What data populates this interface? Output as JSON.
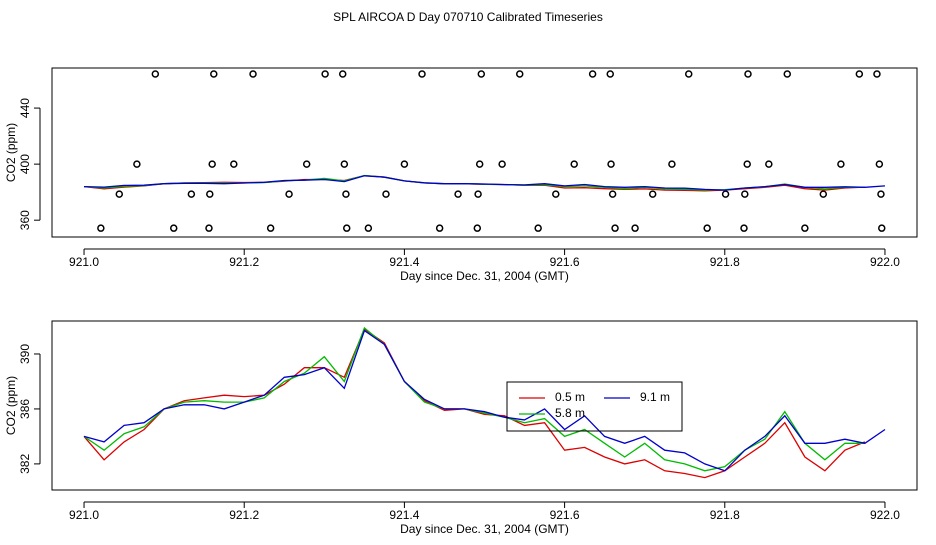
{
  "title": "SPL AIRCOA D  Day 070710  Calibrated Timeseries",
  "chart_data": [
    {
      "type": "line",
      "xlabel": "Day since Dec. 31, 2004 (GMT)",
      "ylabel": "CO2 (ppm)",
      "xlim": [
        920.96,
        922.04
      ],
      "ylim": [
        348,
        468.6
      ],
      "xticks": [
        {
          "value": 921,
          "label": "921.0"
        },
        921.2,
        921.4,
        921.6,
        921.8,
        {
          "value": 922,
          "label": "922.0"
        }
      ],
      "yticks": [
        360,
        400,
        440
      ],
      "x": [
        921.0,
        921.025,
        921.05,
        921.075,
        921.1,
        921.125,
        921.15,
        921.175,
        921.2,
        921.225,
        921.25,
        921.275,
        921.3,
        921.325,
        921.35,
        921.375,
        921.4,
        921.425,
        921.45,
        921.475,
        921.5,
        921.525,
        921.55,
        921.575,
        921.6,
        921.625,
        921.65,
        921.675,
        921.7,
        921.725,
        921.75,
        921.775,
        921.8,
        921.825,
        921.85,
        921.875,
        921.9,
        921.925,
        921.95,
        921.975,
        922.0
      ],
      "series": [
        {
          "color": "#dd0000",
          "values": [
            384,
            382.3,
            383.6,
            384.5,
            386.0,
            386.6,
            386.8,
            387.0,
            386.9,
            387.0,
            387.8,
            389.0,
            389.0,
            388.3,
            391.8,
            390.8,
            388.0,
            386.6,
            385.9,
            386.0,
            385.6,
            385.5,
            384.8,
            385.0,
            383.0,
            383.2,
            382.5,
            382.0,
            382.3,
            381.5,
            381.3,
            381.0,
            381.5,
            382.5,
            383.5,
            385.0,
            382.5,
            381.5,
            383.0,
            383.6,
            null
          ]
        },
        {
          "color": "#00bb00",
          "values": [
            384,
            383.0,
            384.2,
            384.7,
            386.0,
            386.5,
            386.6,
            386.5,
            386.5,
            386.8,
            388.0,
            388.6,
            389.8,
            388.0,
            391.9,
            390.7,
            388.0,
            386.5,
            386.0,
            386.0,
            385.7,
            385.4,
            385.0,
            385.3,
            384.0,
            384.5,
            383.5,
            382.5,
            383.5,
            382.3,
            382.0,
            381.5,
            381.8,
            383.0,
            383.8,
            385.8,
            383.5,
            382.3,
            383.5,
            383.5,
            null
          ]
        },
        {
          "color": "#0000cc",
          "values": [
            384.0,
            383.6,
            384.8,
            385.0,
            386.0,
            386.3,
            386.3,
            386.0,
            386.5,
            387.0,
            388.3,
            388.5,
            389.0,
            387.5,
            391.7,
            390.7,
            388.0,
            386.7,
            386.0,
            386.0,
            385.8,
            385.4,
            385.2,
            386.0,
            384.5,
            385.5,
            384.0,
            383.5,
            384.0,
            383.0,
            382.8,
            382.0,
            381.5,
            383.0,
            384.0,
            385.5,
            383.5,
            383.5,
            383.8,
            383.5,
            384.5
          ]
        }
      ],
      "markers": {
        "x": [
          921.089,
          921.162,
          921.211,
          921.301,
          921.323,
          921.422,
          921.496,
          921.544,
          921.635,
          921.657,
          921.755,
          921.829,
          921.878,
          921.968,
          921.99,
          921.066,
          921.16,
          921.187,
          921.278,
          921.325,
          921.4,
          921.494,
          921.522,
          921.612,
          921.658,
          921.734,
          921.828,
          921.855,
          921.945,
          921.993,
          921.044,
          921.134,
          921.157,
          921.256,
          921.327,
          921.377,
          921.467,
          921.492,
          921.589,
          921.66,
          921.71,
          921.801,
          921.825,
          921.923,
          921.995,
          921.021,
          921.112,
          921.156,
          921.233,
          921.328,
          921.355,
          921.444,
          921.491,
          921.567,
          921.663,
          921.688,
          921.778,
          921.824,
          921.9,
          921.996
        ],
        "values": [
          464.3,
          464.3,
          464.3,
          464.3,
          464.3,
          464.3,
          464.3,
          464.3,
          464.3,
          464.3,
          464.3,
          464.3,
          464.3,
          464.3,
          464.3,
          400,
          400,
          400,
          400,
          400,
          400,
          400,
          400,
          400,
          400,
          400,
          400,
          400,
          400,
          400,
          378.6,
          378.6,
          378.6,
          378.6,
          378.6,
          378.6,
          378.6,
          378.6,
          378.6,
          378.6,
          378.6,
          378.6,
          378.6,
          378.6,
          378.6,
          354.3,
          354.3,
          354.3,
          354.3,
          354.3,
          354.3,
          354.3,
          354.3,
          354.3,
          354.3,
          354.3,
          354.3,
          354.3,
          354.3,
          354.3
        ]
      }
    },
    {
      "type": "line",
      "xlabel": "Day since Dec. 31, 2004 (GMT)",
      "ylabel": "CO2 (ppm)",
      "xlim": [
        920.96,
        922.04
      ],
      "ylim": [
        380.1,
        392.4
      ],
      "xticks": [
        {
          "value": 921,
          "label": "921.0"
        },
        921.2,
        921.4,
        921.6,
        921.8,
        {
          "value": 922,
          "label": "922.0"
        }
      ],
      "yticks": [
        382,
        386,
        390
      ],
      "legend": "center",
      "x": [
        921.0,
        921.025,
        921.05,
        921.075,
        921.1,
        921.125,
        921.15,
        921.175,
        921.2,
        921.225,
        921.25,
        921.275,
        921.3,
        921.325,
        921.35,
        921.375,
        921.4,
        921.425,
        921.45,
        921.475,
        921.5,
        921.525,
        921.55,
        921.575,
        921.6,
        921.625,
        921.65,
        921.675,
        921.7,
        921.725,
        921.75,
        921.775,
        921.8,
        921.825,
        921.85,
        921.875,
        921.9,
        921.925,
        921.95,
        921.975,
        922.0
      ],
      "series": [
        {
          "name": "0.5 m",
          "color": "#dd0000",
          "values": [
            384,
            382.3,
            383.6,
            384.5,
            386.0,
            386.6,
            386.8,
            387.0,
            386.9,
            387.0,
            387.8,
            389.0,
            389.0,
            388.3,
            391.8,
            390.8,
            388.0,
            386.6,
            385.9,
            386.0,
            385.6,
            385.5,
            384.8,
            385.0,
            383.0,
            383.2,
            382.5,
            382.0,
            382.3,
            381.5,
            381.3,
            381.0,
            381.5,
            382.5,
            383.5,
            385.0,
            382.5,
            381.5,
            383.0,
            383.6,
            null
          ]
        },
        {
          "name": "5.8 m",
          "color": "#00bb00",
          "values": [
            384,
            383.0,
            384.2,
            384.7,
            386.0,
            386.5,
            386.6,
            386.5,
            386.5,
            386.8,
            388.0,
            388.6,
            389.8,
            388.0,
            391.9,
            390.7,
            388.0,
            386.5,
            386.0,
            386.0,
            385.7,
            385.4,
            385.0,
            385.3,
            384.0,
            384.5,
            383.5,
            382.5,
            383.5,
            382.3,
            382.0,
            381.5,
            381.8,
            383.0,
            383.8,
            385.8,
            383.5,
            382.3,
            383.5,
            383.5,
            null
          ]
        },
        {
          "name": "9.1 m",
          "color": "#0000cc",
          "values": [
            384.0,
            383.6,
            384.8,
            385.0,
            386.0,
            386.3,
            386.3,
            386.0,
            386.5,
            387.0,
            388.3,
            388.5,
            389.0,
            387.5,
            391.7,
            390.7,
            388.0,
            386.7,
            386.0,
            386.0,
            385.8,
            385.4,
            385.2,
            386.0,
            384.5,
            385.5,
            384.0,
            383.5,
            384.0,
            383.0,
            382.8,
            382.0,
            381.5,
            383.0,
            384.0,
            385.5,
            383.5,
            383.5,
            383.8,
            383.5,
            384.5
          ]
        }
      ]
    }
  ]
}
